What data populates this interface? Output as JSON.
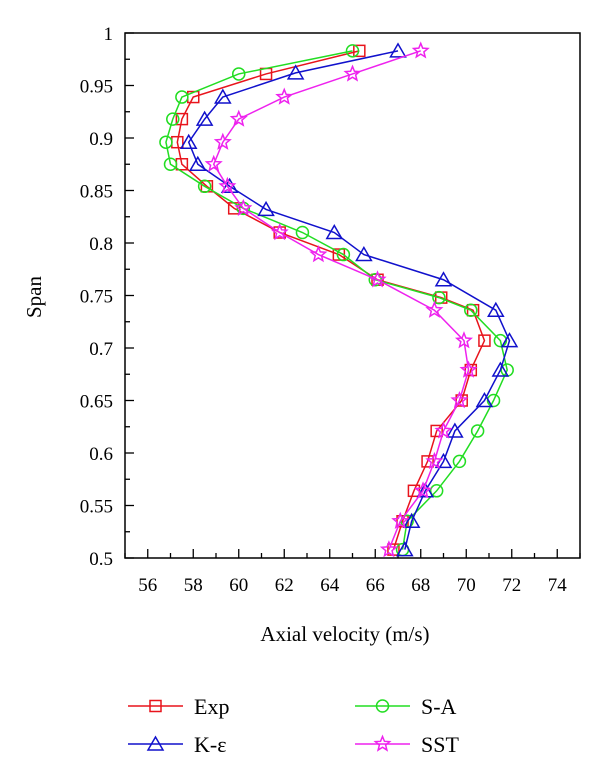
{
  "chart_data": {
    "type": "line",
    "xlabel": "Axial velocity (m/s)",
    "ylabel": "Span",
    "xlim": [
      55,
      75
    ],
    "ylim": [
      0.5,
      1.0
    ],
    "xticks": [
      56,
      58,
      60,
      62,
      64,
      66,
      68,
      70,
      72,
      74
    ],
    "yticks": [
      0.5,
      0.55,
      0.6,
      0.65,
      0.7,
      0.75,
      0.8,
      0.85,
      0.9,
      0.95,
      1
    ],
    "ytick_labels": [
      "0.5",
      "0.55",
      "0.6",
      "0.65",
      "0.7",
      "0.75",
      "0.8",
      "0.85",
      "0.9",
      "0.95",
      "1"
    ],
    "xtick_labels": [
      "56",
      "58",
      "60",
      "62",
      "64",
      "66",
      "68",
      "70",
      "72",
      "74"
    ],
    "grid": false,
    "legend_position": "bottom",
    "series": [
      {
        "name": "Exp",
        "color": "#e8141c",
        "marker": "square",
        "points": [
          [
            65.3,
            0.983
          ],
          [
            61.2,
            0.961
          ],
          [
            58.0,
            0.939
          ],
          [
            57.5,
            0.918
          ],
          [
            57.3,
            0.896
          ],
          [
            57.5,
            0.875
          ],
          [
            58.6,
            0.854
          ],
          [
            59.8,
            0.833
          ],
          [
            61.8,
            0.81
          ],
          [
            64.4,
            0.789
          ],
          [
            66.1,
            0.765
          ],
          [
            68.9,
            0.748
          ],
          [
            70.3,
            0.736
          ],
          [
            70.8,
            0.707
          ],
          [
            70.2,
            0.679
          ],
          [
            69.8,
            0.65
          ],
          [
            68.7,
            0.621
          ],
          [
            68.3,
            0.592
          ],
          [
            67.7,
            0.564
          ],
          [
            67.2,
            0.535
          ],
          [
            66.8,
            0.508
          ]
        ]
      },
      {
        "name": "S-A",
        "color": "#22dd22",
        "marker": "circle",
        "points": [
          [
            65.0,
            0.983
          ],
          [
            60.0,
            0.961
          ],
          [
            57.5,
            0.939
          ],
          [
            57.1,
            0.918
          ],
          [
            56.8,
            0.896
          ],
          [
            57.0,
            0.875
          ],
          [
            58.5,
            0.854
          ],
          [
            60.2,
            0.833
          ],
          [
            62.8,
            0.81
          ],
          [
            64.6,
            0.789
          ],
          [
            66.0,
            0.765
          ],
          [
            68.8,
            0.748
          ],
          [
            70.2,
            0.736
          ],
          [
            71.5,
            0.707
          ],
          [
            71.8,
            0.679
          ],
          [
            71.2,
            0.65
          ],
          [
            70.5,
            0.621
          ],
          [
            69.7,
            0.592
          ],
          [
            68.7,
            0.564
          ],
          [
            67.4,
            0.535
          ],
          [
            67.2,
            0.508
          ]
        ]
      },
      {
        "name": "K-ε",
        "color": "#1111cc",
        "marker": "triangle",
        "points": [
          [
            67.0,
            0.983
          ],
          [
            62.5,
            0.962
          ],
          [
            59.3,
            0.939
          ],
          [
            58.5,
            0.918
          ],
          [
            57.8,
            0.896
          ],
          [
            58.2,
            0.875
          ],
          [
            59.6,
            0.854
          ],
          [
            61.2,
            0.832
          ],
          [
            64.2,
            0.81
          ],
          [
            65.5,
            0.789
          ],
          [
            69.0,
            0.765
          ],
          [
            71.3,
            0.736
          ],
          [
            71.9,
            0.707
          ],
          [
            71.5,
            0.679
          ],
          [
            70.8,
            0.65
          ],
          [
            69.5,
            0.621
          ],
          [
            69.0,
            0.592
          ],
          [
            68.2,
            0.564
          ],
          [
            67.6,
            0.535
          ],
          [
            67.3,
            0.508
          ]
        ]
      },
      {
        "name": "SST",
        "color": "#ee22ee",
        "marker": "star",
        "points": [
          [
            68.0,
            0.983
          ],
          [
            65.0,
            0.961
          ],
          [
            62.0,
            0.939
          ],
          [
            60.0,
            0.918
          ],
          [
            59.3,
            0.896
          ],
          [
            58.9,
            0.875
          ],
          [
            59.5,
            0.854
          ],
          [
            60.2,
            0.833
          ],
          [
            61.8,
            0.81
          ],
          [
            63.5,
            0.789
          ],
          [
            66.1,
            0.765
          ],
          [
            68.6,
            0.736
          ],
          [
            69.9,
            0.707
          ],
          [
            70.1,
            0.679
          ],
          [
            69.7,
            0.65
          ],
          [
            69.0,
            0.621
          ],
          [
            68.6,
            0.592
          ],
          [
            68.1,
            0.564
          ],
          [
            67.1,
            0.535
          ],
          [
            66.6,
            0.508
          ]
        ]
      }
    ]
  }
}
